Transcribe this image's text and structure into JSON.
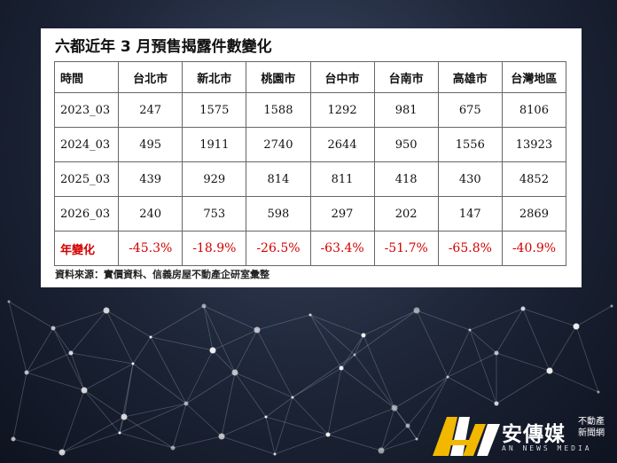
{
  "card": {
    "title": "六都近年 3 月預售揭露件數變化",
    "source": "資料來源：實價資料、信義房屋不動產企研室彙整"
  },
  "table": {
    "headers": [
      "時間",
      "台北市",
      "新北市",
      "桃園市",
      "台中市",
      "台南市",
      "高雄市",
      "台灣地區"
    ],
    "rows": [
      [
        "2023_03",
        "247",
        "1575",
        "1588",
        "1292",
        "981",
        "675",
        "8106"
      ],
      [
        "2024_03",
        "495",
        "1911",
        "2740",
        "2644",
        "950",
        "1556",
        "13923"
      ],
      [
        "2025_03",
        "439",
        "929",
        "814",
        "811",
        "418",
        "430",
        "4852"
      ],
      [
        "2026_03",
        "240",
        "753",
        "598",
        "297",
        "202",
        "147",
        "2869"
      ]
    ],
    "change_row": [
      "年變化",
      "-45.3%",
      "-18.9%",
      "-26.5%",
      "-63.4%",
      "-51.7%",
      "-65.8%",
      "-40.9%"
    ]
  },
  "brand": {
    "name": "安傳媒",
    "tag_line1": "不動產",
    "tag_line2": "新聞網",
    "english": "AN NEWS MEDIA",
    "colors": {
      "gold": "#f2b800",
      "white": "#ffffff"
    }
  },
  "colors": {
    "highlight_red": "#d40000"
  }
}
